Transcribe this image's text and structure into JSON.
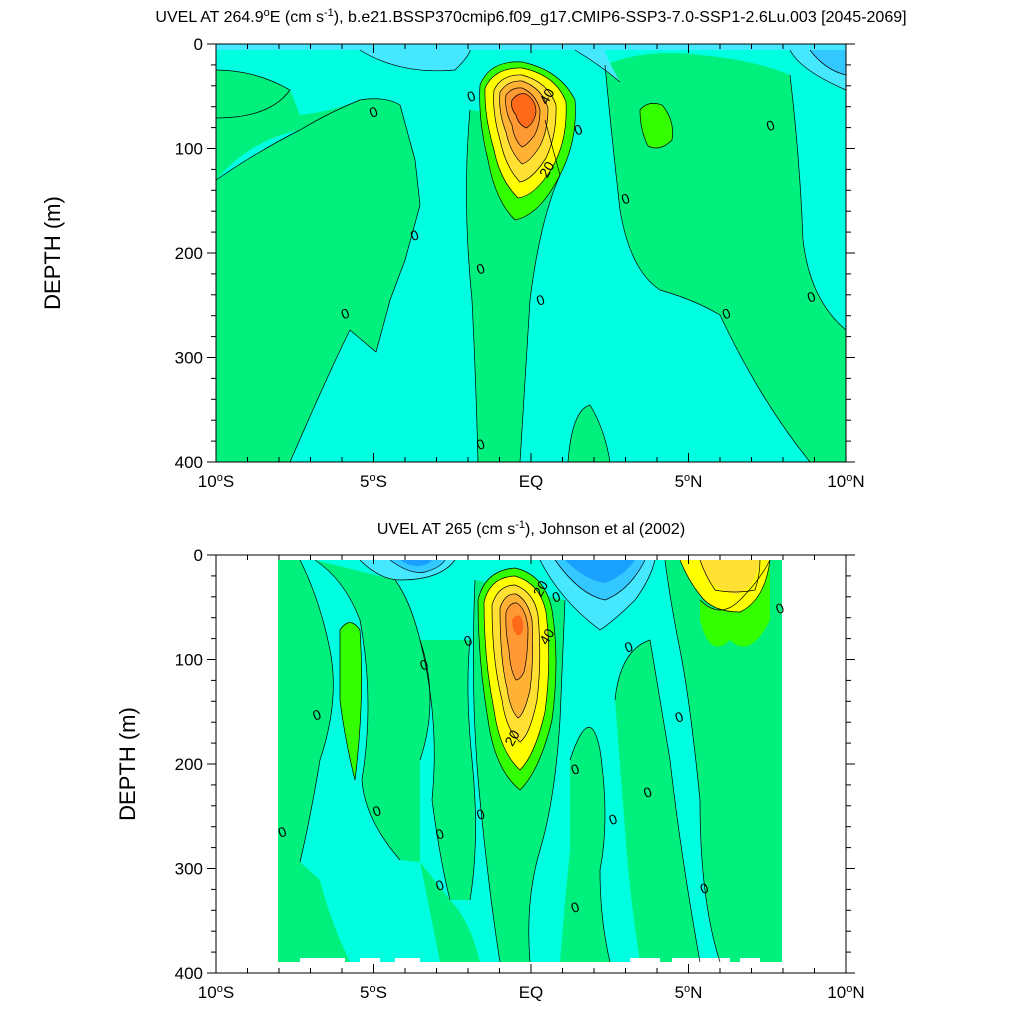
{
  "colors": {
    "strong_neg": "#1aa0ff",
    "neg2": "#33c8ff",
    "neg1": "#46e8ff",
    "zero_neg": "#00ffe1",
    "zero_pos": "#00f07e",
    "pos1": "#33ff00",
    "y1": "#ffff00",
    "y2": "#ffe033",
    "o1": "#ffb233",
    "o2": "#ff9933",
    "r1": "#ff6a1a"
  },
  "chart_data": [
    {
      "type": "contour",
      "title": "UVEL AT 264.9°E (cm s-1), b.e21.BSSP370cmip6.f09_g17.CMIP6-SSP3-7.0-SSP1-2.6Lu.003 [2045-2069]",
      "title_parts": [
        "UVEL AT 264.9",
        "o",
        "E (cm s",
        "-1",
        "), b.e21.BSSP370cmip6.f09_g17.CMIP6-SSP3-7.0-SSP1-2.6Lu.003 [2045-2069]"
      ],
      "xlabel": "",
      "ylabel": "DEPTH (m)",
      "xlim": [
        -10,
        10
      ],
      "ylim": [
        400,
        0
      ],
      "x_tick_labels": [
        "10°S",
        "5°S",
        "EQ",
        "5°N",
        "10°N"
      ],
      "y_ticks": [
        0,
        100,
        200,
        300,
        400
      ],
      "contour_labels": [
        {
          "text": "40",
          "lat": 0.5,
          "depth": 50
        },
        {
          "text": "20",
          "lat": 0.5,
          "depth": 120
        },
        {
          "text": "0",
          "lat": -5,
          "depth": 65
        },
        {
          "text": "0",
          "lat": -1.9,
          "depth": 50
        },
        {
          "text": "0",
          "lat": 1.5,
          "depth": 82
        },
        {
          "text": "0",
          "lat": 7.6,
          "depth": 78
        },
        {
          "text": "0",
          "lat": 3,
          "depth": 148
        },
        {
          "text": "0",
          "lat": -3.7,
          "depth": 183
        },
        {
          "text": "0",
          "lat": -1.6,
          "depth": 215
        },
        {
          "text": "0",
          "lat": 0.3,
          "depth": 245
        },
        {
          "text": "0",
          "lat": -5.9,
          "depth": 258
        },
        {
          "text": "0",
          "lat": 6.2,
          "depth": 258
        },
        {
          "text": "0",
          "lat": 8.9,
          "depth": 242
        },
        {
          "text": "0",
          "lat": -1.6,
          "depth": 383
        }
      ]
    },
    {
      "type": "contour",
      "title": "UVEL AT 265 (cm s-1), Johnson et al (2002)",
      "title_parts": [
        "UVEL AT 265 (cm s",
        "-1",
        "), Johnson et al (2002)"
      ],
      "xlabel": "",
      "ylabel": "DEPTH (m)",
      "xlim": [
        -10,
        10
      ],
      "ylim": [
        400,
        0
      ],
      "x_tick_labels": [
        "10°S",
        "5°S",
        "EQ",
        "5°N",
        "10°N"
      ],
      "y_ticks": [
        0,
        100,
        200,
        300,
        400
      ],
      "contour_labels": [
        {
          "text": "20",
          "lat": 0.3,
          "depth": 32
        },
        {
          "text": "0",
          "lat": 0.8,
          "depth": 40
        },
        {
          "text": "40",
          "lat": 0.5,
          "depth": 78
        },
        {
          "text": "20",
          "lat": -0.6,
          "depth": 175
        },
        {
          "text": "0",
          "lat": 7.9,
          "depth": 51
        },
        {
          "text": "0",
          "lat": -2,
          "depth": 82
        },
        {
          "text": "0",
          "lat": 3.1,
          "depth": 88
        },
        {
          "text": "0",
          "lat": -3.4,
          "depth": 105
        },
        {
          "text": "0",
          "lat": -6.8,
          "depth": 153
        },
        {
          "text": "0",
          "lat": 4.7,
          "depth": 155
        },
        {
          "text": "0",
          "lat": 1.4,
          "depth": 205
        },
        {
          "text": "0",
          "lat": 3.7,
          "depth": 227
        },
        {
          "text": "0",
          "lat": -4.9,
          "depth": 245
        },
        {
          "text": "0",
          "lat": -1.6,
          "depth": 248
        },
        {
          "text": "0",
          "lat": 2.6,
          "depth": 253
        },
        {
          "text": "0",
          "lat": -7.9,
          "depth": 265
        },
        {
          "text": "0",
          "lat": -2.9,
          "depth": 267
        },
        {
          "text": "0",
          "lat": -2.9,
          "depth": 316
        },
        {
          "text": "0",
          "lat": 5.5,
          "depth": 319
        },
        {
          "text": "0",
          "lat": 1.4,
          "depth": 337
        }
      ]
    }
  ]
}
